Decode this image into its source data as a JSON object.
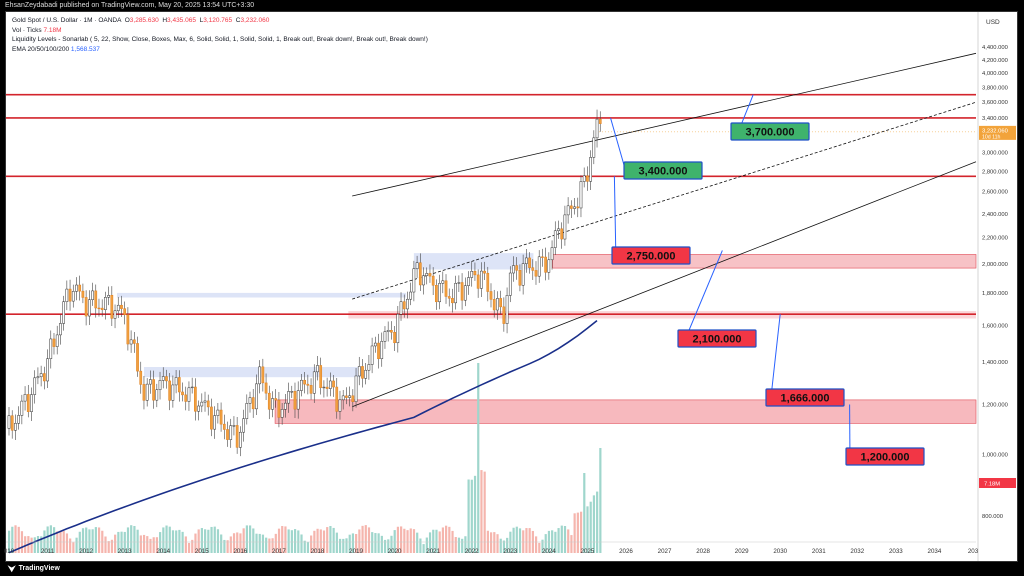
{
  "header": {
    "publisher_line": "EhsanZeydabadi published on TradingView.com, May 20, 2025 13:54 UTC+3:30"
  },
  "legend": {
    "symbol": "Gold Spot / U.S. Dollar · 1M · OANDA",
    "open_label": "O",
    "open": "3,285.630",
    "high_label": "H",
    "high": "3,435.065",
    "low_label": "L",
    "low": "3,120.765",
    "close_label": "C",
    "close": "3,232.060",
    "vol_label": "Vol · Ticks",
    "vol": "7.18M",
    "indicator_text": "Liquidity Levels - Sonarlab ( 5, 22, Show, Close, Boxes, Max, 6, Solid, Solid, 1, Solid, Solid, 1, Break out!, Break down!, Break out!, Break down!)",
    "ema_label": "EMA 20/50/100/200",
    "ema_value": "1,568.537"
  },
  "footer": {
    "brand": "TradingView"
  },
  "chart_data": {
    "type": "line",
    "subtype": "candlestick",
    "currency": "USD",
    "y_scale": "log",
    "ylim": [
      700,
      4500
    ],
    "grid": false,
    "y_ticks": [
      "4,400.000",
      "4,200.000",
      "4,000.000",
      "3,800.000",
      "3,600.000",
      "3,400.000",
      "3,000.000",
      "2,800.000",
      "2,600.000",
      "2,400.000",
      "2,200.000",
      "2,000.000",
      "1,800.000",
      "1,600.000",
      "1,400.000",
      "1,200.000",
      "1,000.000",
      "800.000"
    ],
    "y_tick_values": [
      4400,
      4200,
      4000,
      3800,
      3600,
      3400,
      3000,
      2800,
      2600,
      2400,
      2200,
      2000,
      1800,
      1600,
      1400,
      1200,
      1000,
      800
    ],
    "x_ticks": [
      "2010",
      "2011",
      "2012",
      "2013",
      "2014",
      "2015",
      "2016",
      "2017",
      "2018",
      "2019",
      "2020",
      "2021",
      "2022",
      "2023",
      "2024",
      "2025",
      "2026",
      "2027",
      "2028",
      "2029",
      "2030",
      "2031",
      "2032",
      "2033",
      "2034",
      "2035"
    ],
    "x_tick_labels": [
      "010",
      "2011",
      "2012",
      "2013",
      "2014",
      "2015",
      "2016",
      "2017",
      "2018",
      "2019",
      "2020",
      "2021",
      "2022",
      "2023",
      "2024",
      "2025",
      "2026",
      "2027",
      "2028",
      "2029",
      "2030",
      "2031",
      "2032",
      "2033",
      "2034",
      "203"
    ],
    "price_path": [
      [
        2010.0,
        1100
      ],
      [
        2010.5,
        1230
      ],
      [
        2011.0,
        1400
      ],
      [
        2011.6,
        1850
      ],
      [
        2012.0,
        1740
      ],
      [
        2012.7,
        1720
      ],
      [
        2013.0,
        1650
      ],
      [
        2013.5,
        1250
      ],
      [
        2014.0,
        1300
      ],
      [
        2014.6,
        1250
      ],
      [
        2015.0,
        1200
      ],
      [
        2015.9,
        1060
      ],
      [
        2016.5,
        1330
      ],
      [
        2016.9,
        1170
      ],
      [
        2017.5,
        1260
      ],
      [
        2018.0,
        1330
      ],
      [
        2018.7,
        1200
      ],
      [
        2019.0,
        1300
      ],
      [
        2019.6,
        1500
      ],
      [
        2020.0,
        1580
      ],
      [
        2020.6,
        1970
      ],
      [
        2021.0,
        1850
      ],
      [
        2021.5,
        1780
      ],
      [
        2022.0,
        1900
      ],
      [
        2022.2,
        1940
      ],
      [
        2022.8,
        1640
      ],
      [
        2023.0,
        1920
      ],
      [
        2023.4,
        1980
      ],
      [
        2023.8,
        1980
      ],
      [
        2024.0,
        2050
      ],
      [
        2024.3,
        2300
      ],
      [
        2024.6,
        2450
      ],
      [
        2024.9,
        2650
      ],
      [
        2025.0,
        2800
      ],
      [
        2025.2,
        3250
      ],
      [
        2025.33,
        3300
      ]
    ],
    "current_price": "3,232.060",
    "countdown": "10d 11h",
    "volume_marker": "7.18M",
    "annotations": [
      {
        "label": "3,700.000",
        "level": 3700,
        "color": "#3fb36c"
      },
      {
        "label": "3,400.000",
        "level": 3400,
        "color": "#3fb36c"
      },
      {
        "label": "2,750.000",
        "level": 2750,
        "color": "#f23645"
      },
      {
        "label": "2,100.000",
        "level": 2100,
        "color": "#f23645"
      },
      {
        "label": "1,666.000",
        "level": 1666,
        "color": "#f23645"
      },
      {
        "label": "1,200.000",
        "level": 1200,
        "color": "#f23645"
      }
    ],
    "horizontal_levels": [
      3700,
      3400,
      2750,
      1666
    ],
    "zones": [
      [
        1970,
        2070
      ],
      [
        1120,
        1220
      ],
      [
        1640,
        1680
      ]
    ],
    "colors": {
      "up": "#089981",
      "down": "#f23645",
      "ema": "#1a2f8a",
      "level": "#d3242c"
    }
  }
}
